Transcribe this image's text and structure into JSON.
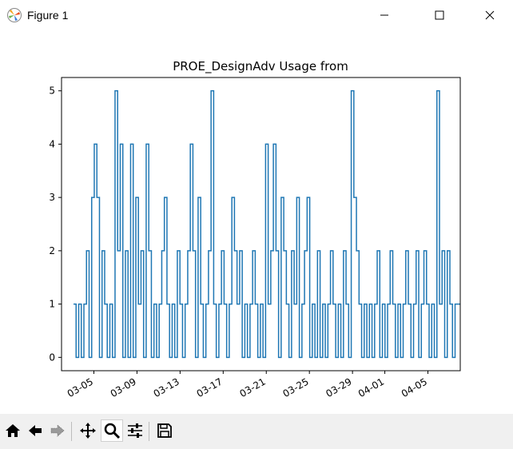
{
  "window": {
    "title": "Figure 1",
    "app_icon": "matplotlib-figure-icon",
    "controls": [
      "minimize-icon",
      "maximize-icon",
      "close-icon"
    ]
  },
  "toolbar": {
    "buttons": [
      {
        "name": "home-button",
        "icon": "home-icon"
      },
      {
        "name": "back-button",
        "icon": "back-arrow-icon"
      },
      {
        "name": "forward-button",
        "icon": "forward-arrow-icon"
      },
      {
        "name": "pan-button",
        "icon": "move-icon"
      },
      {
        "name": "zoom-button",
        "icon": "zoom-magnifier-icon",
        "active": true
      },
      {
        "name": "configure-subplots-button",
        "icon": "sliders-icon"
      },
      {
        "name": "save-button",
        "icon": "floppy-disk-icon"
      }
    ]
  },
  "chart_data": {
    "type": "line",
    "step": true,
    "title": "PROE_DesignAdv Usage from",
    "xlabel": "",
    "ylabel": "",
    "line_color": "#1f77b4",
    "x_ticks": [
      "03-05",
      "03-09",
      "03-13",
      "03-17",
      "03-21",
      "03-25",
      "03-29",
      "04-01",
      "04-05"
    ],
    "y_ticks": [
      "0",
      "1",
      "2",
      "3",
      "4",
      "5"
    ],
    "ylim": [
      -0.25,
      5.25
    ],
    "grid": false,
    "x_start": "03-02",
    "x_end": "04-08",
    "series": [
      {
        "values": [
          1,
          0,
          1,
          0,
          1,
          2,
          0,
          3,
          4,
          3,
          0,
          2,
          1,
          0,
          1,
          0,
          5,
          2,
          4,
          0,
          2,
          0,
          4,
          0,
          3,
          1,
          2,
          0,
          4,
          2,
          0,
          1,
          0,
          1,
          2,
          3,
          1,
          0,
          1,
          0,
          2,
          1,
          0,
          1,
          2,
          4,
          2,
          0,
          3,
          1,
          0,
          1,
          2,
          5,
          1,
          0,
          1,
          2,
          1,
          0,
          1,
          3,
          2,
          1,
          2,
          0,
          1,
          0,
          1,
          2,
          1,
          0,
          1,
          0,
          4,
          1,
          2,
          4,
          2,
          0,
          3,
          2,
          1,
          0,
          2,
          1,
          3,
          0,
          1,
          2,
          3,
          0,
          1,
          0,
          2,
          0,
          1,
          0,
          1,
          2,
          1,
          0,
          1,
          0,
          2,
          1,
          0,
          5,
          3,
          2,
          1,
          0,
          1,
          0,
          1,
          0,
          1,
          2,
          0,
          1,
          0,
          1,
          2,
          1,
          0,
          1,
          0,
          1,
          2,
          1,
          0,
          1,
          2,
          0,
          1,
          2,
          1,
          0,
          1,
          0,
          5,
          1,
          2,
          0,
          2,
          1,
          0,
          1,
          1
        ]
      }
    ]
  }
}
